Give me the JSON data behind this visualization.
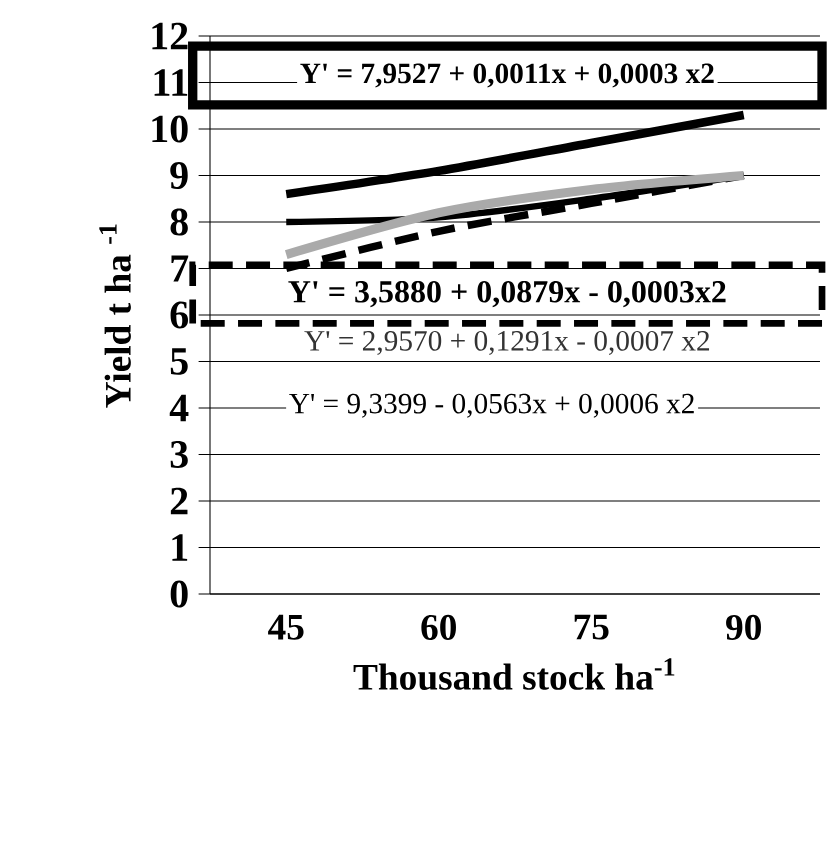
{
  "chart_data": {
    "type": "line",
    "xlabel": "Thousand stock ha$^{-1}$",
    "ylabel": "Yield t ha $^{-1}$",
    "categories": [
      "45",
      "60",
      "75",
      "90"
    ],
    "ylim": [
      0,
      12
    ],
    "yticks": [
      0,
      1,
      2,
      3,
      4,
      5,
      6,
      7,
      8,
      9,
      10,
      11,
      12
    ],
    "grid": "y",
    "marker": "none",
    "series": [
      {
        "color": "#000000",
        "values": [
          8.6,
          9.1,
          9.7,
          10.3
        ],
        "line_style": "solid"
      },
      {
        "color": "#000000",
        "values": [
          8.0,
          8.1,
          8.5,
          9.0
        ],
        "line_style": "solid"
      },
      {
        "color": "#000000",
        "values": [
          7.0,
          7.8,
          8.4,
          9.0
        ],
        "line_style": "dashed"
      },
      {
        "color": "#aaaaaa",
        "values": [
          7.3,
          8.2,
          8.7,
          9.0
        ],
        "line_style": "solid"
      }
    ],
    "annotations": [
      "Y' = 7,9527 + 0,0011x + 0,0003 x2",
      "Y' = 3,5880 + 0,0879x - 0,0003x2",
      "Y' = 2,9570 + 0,1291x - 0,0007 x2",
      "Y' = 9,3399 - 0,0563x + 0,0006 x2"
    ]
  }
}
